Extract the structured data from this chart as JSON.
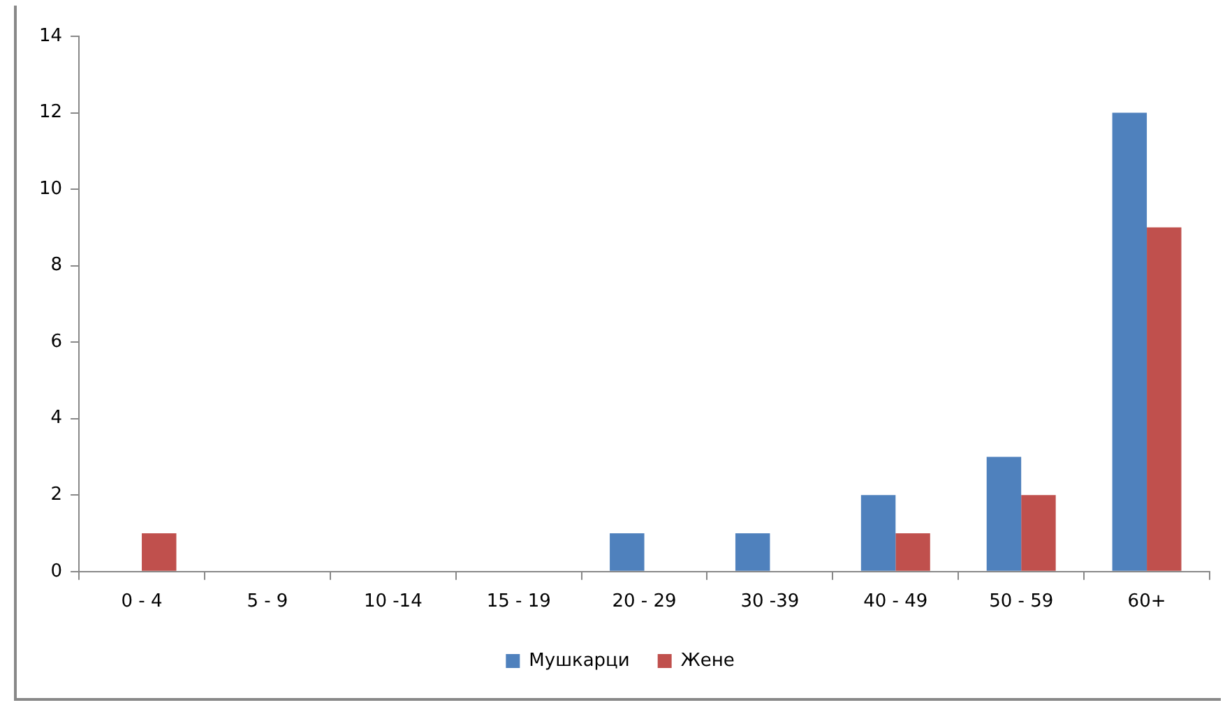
{
  "chart_data": {
    "type": "bar",
    "categories": [
      "0 - 4",
      "5 - 9",
      "10 -14",
      "15 - 19",
      "20 - 29",
      "30 -39",
      "40 - 49",
      "50 - 59",
      "60+"
    ],
    "series": [
      {
        "name": "Мушкарци",
        "color": "#4f81bd",
        "values": [
          0,
          0,
          0,
          0,
          1,
          1,
          2,
          3,
          12
        ]
      },
      {
        "name": "Жене",
        "color": "#c0504d",
        "values": [
          1,
          0,
          0,
          0,
          0,
          0,
          1,
          2,
          9
        ]
      }
    ],
    "ylim": [
      0,
      14
    ],
    "yticks": [
      0,
      2,
      4,
      6,
      8,
      10,
      12,
      14
    ],
    "grid": false,
    "legend": "bottom"
  }
}
